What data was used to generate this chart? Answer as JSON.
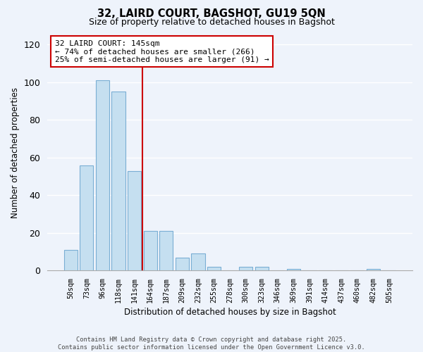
{
  "title": "32, LAIRD COURT, BAGSHOT, GU19 5QN",
  "subtitle": "Size of property relative to detached houses in Bagshot",
  "xlabel": "Distribution of detached houses by size in Bagshot",
  "ylabel": "Number of detached properties",
  "bar_labels": [
    "50sqm",
    "73sqm",
    "96sqm",
    "118sqm",
    "141sqm",
    "164sqm",
    "187sqm",
    "209sqm",
    "232sqm",
    "255sqm",
    "278sqm",
    "300sqm",
    "323sqm",
    "346sqm",
    "369sqm",
    "391sqm",
    "414sqm",
    "437sqm",
    "460sqm",
    "482sqm",
    "505sqm"
  ],
  "bar_values": [
    11,
    56,
    101,
    95,
    53,
    21,
    21,
    7,
    9,
    2,
    0,
    2,
    2,
    0,
    1,
    0,
    0,
    0,
    0,
    1,
    0
  ],
  "bar_color": "#c5dff0",
  "bar_edge_color": "#7aaed4",
  "vline_x": 4.5,
  "vline_color": "#cc0000",
  "ylim": [
    0,
    125
  ],
  "yticks": [
    0,
    20,
    40,
    60,
    80,
    100,
    120
  ],
  "annotation_title": "32 LAIRD COURT: 145sqm",
  "annotation_line1": "← 74% of detached houses are smaller (266)",
  "annotation_line2": "25% of semi-detached houses are larger (91) →",
  "annotation_box_color": "white",
  "annotation_box_edge": "#cc0000",
  "footer1": "Contains HM Land Registry data © Crown copyright and database right 2025.",
  "footer2": "Contains public sector information licensed under the Open Government Licence v3.0.",
  "background_color": "#eef3fb",
  "grid_color": "#ffffff"
}
